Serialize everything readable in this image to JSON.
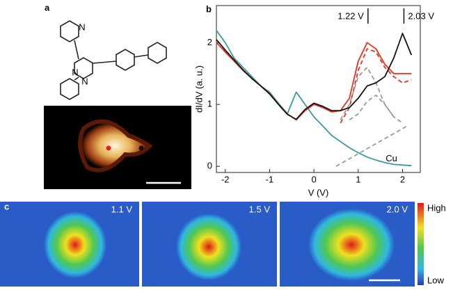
{
  "panel_a": {
    "label": "a",
    "atoms": [
      "N",
      "N",
      "N"
    ]
  },
  "chart_data": {
    "type": "line",
    "label": "b",
    "xlabel": "V (V)",
    "ylabel": "dI/dV (a. u.)",
    "xlim": [
      -2.2,
      2.4
    ],
    "ylim": [
      -0.1,
      2.6
    ],
    "xticks": [
      -2,
      -1,
      0,
      1,
      2
    ],
    "yticks": [
      0,
      1,
      2
    ],
    "x": [
      -2.2,
      -2,
      -1.8,
      -1.6,
      -1.4,
      -1.2,
      -1,
      -0.8,
      -0.6,
      -0.4,
      -0.2,
      0,
      0.2,
      0.4,
      0.6,
      0.8,
      1,
      1.2,
      1.4,
      1.6,
      1.8,
      2,
      2.2
    ],
    "series": [
      {
        "color": "#3a9aa0",
        "values": [
          2.2,
          2.0,
          1.75,
          1.6,
          1.45,
          1.3,
          1.2,
          1.02,
          0.85,
          1.2,
          1.0,
          0.8,
          0.65,
          0.5,
          0.4,
          0.3,
          0.22,
          0.15,
          0.1,
          0.06,
          0.03,
          0.02,
          0.01
        ]
      },
      {
        "color": "#e8301e",
        "values": [
          2.0,
          1.85,
          1.7,
          1.55,
          1.42,
          1.3,
          1.18,
          1.0,
          0.85,
          0.75,
          0.9,
          1.0,
          0.95,
          0.88,
          0.9,
          1.1,
          1.7,
          2.0,
          1.9,
          1.65,
          1.5,
          1.5,
          1.5
        ]
      },
      {
        "color": "#111111",
        "values": [
          2.05,
          1.88,
          1.72,
          1.56,
          1.42,
          1.3,
          1.17,
          1.0,
          0.84,
          0.76,
          0.92,
          1.02,
          0.97,
          0.9,
          0.9,
          0.95,
          1.1,
          1.3,
          1.35,
          1.45,
          1.75,
          2.15,
          1.8
        ]
      }
    ],
    "fits": [
      {
        "color": "#e8301e",
        "x": [
          0.6,
          0.8,
          1.0,
          1.2,
          1.4,
          1.6,
          1.8,
          2.0,
          2.2
        ],
        "values": [
          0.7,
          0.95,
          1.55,
          1.9,
          1.85,
          1.6,
          1.45,
          1.35,
          1.4
        ]
      },
      {
        "color": "#999999",
        "x": [
          0.6,
          0.8,
          1.0,
          1.2,
          1.4,
          1.6,
          1.8
        ],
        "values": [
          0.75,
          1.0,
          1.45,
          1.6,
          1.35,
          1.0,
          0.8
        ]
      },
      {
        "color": "#999999",
        "x": [
          0.8,
          1.0,
          1.2,
          1.4,
          1.6,
          1.8,
          2.0
        ],
        "values": [
          0.75,
          0.85,
          1.05,
          1.15,
          1.0,
          0.8,
          0.7
        ]
      },
      {
        "color": "#999999",
        "x": [
          0.5,
          2.1
        ],
        "values": [
          0.0,
          0.65
        ]
      }
    ],
    "peaks": [
      {
        "value": 1.22,
        "label": "1.22 V"
      },
      {
        "value": 2.03,
        "label": "2.03 V"
      }
    ],
    "annotation": "Cu"
  },
  "panel_c": {
    "label": "c",
    "maps": [
      "1.1 V",
      "1.5 V",
      "2.0 V"
    ],
    "colorbar": {
      "high": "High",
      "low": "Low"
    }
  }
}
